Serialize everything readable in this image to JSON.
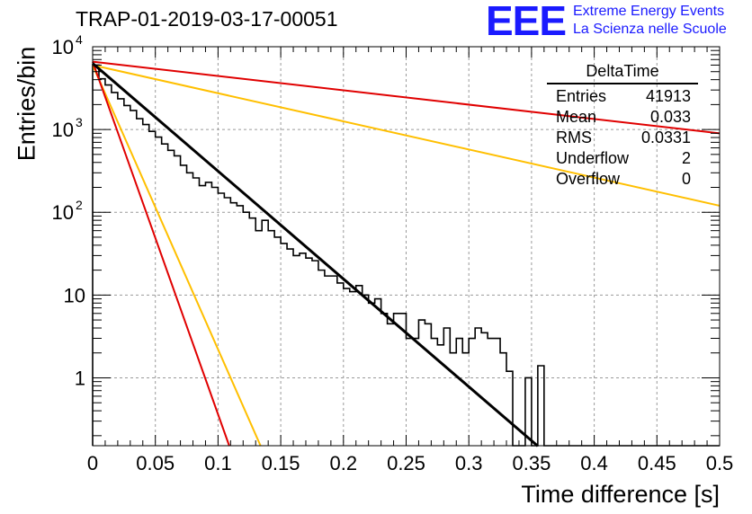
{
  "header": {
    "title": "TRAP-01-2019-03-17-00051",
    "logo": "EEE",
    "logo_line1": "Extreme Energy Events",
    "logo_line2": "La Scienza nelle Scuole"
  },
  "stats_box": {
    "name": "DeltaTime",
    "rows": [
      {
        "label": "Entries",
        "value": "41913"
      },
      {
        "label": "Mean",
        "value": "0.033"
      },
      {
        "label": "RMS",
        "value": "0.0331"
      },
      {
        "label": "Underflow",
        "value": "2"
      },
      {
        "label": "Overflow",
        "value": "0"
      }
    ]
  },
  "chart_data": {
    "type": "histogram",
    "title": "TRAP-01-2019-03-17-00051",
    "xlabel": "Time difference [s]",
    "ylabel": "Entries/bin",
    "xlim": [
      0,
      0.5
    ],
    "ylim_log10": [
      -0.82,
      4
    ],
    "yscale": "log",
    "grid": true,
    "x_ticks": [
      "0",
      "0.05",
      "0.1",
      "0.15",
      "0.2",
      "0.25",
      "0.3",
      "0.35",
      "0.4",
      "0.45",
      "0.5"
    ],
    "y_ticks": [
      {
        "base": "10",
        "exp": "4",
        "value": 10000
      },
      {
        "base": "10",
        "exp": "3",
        "value": 1000
      },
      {
        "base": "10",
        "exp": "2",
        "value": 100
      },
      {
        "base": "10",
        "exp": "",
        "value": 10
      },
      {
        "base": "1",
        "exp": "",
        "value": 1
      }
    ],
    "bin_width": 0.005,
    "histogram": [
      6000,
      4100,
      3450,
      2800,
      2350,
      1950,
      1700,
      1350,
      1150,
      950,
      810,
      670,
      560,
      480,
      370,
      300,
      260,
      210,
      230,
      200,
      170,
      150,
      130,
      120,
      100,
      85,
      60,
      80,
      60,
      50,
      42,
      36,
      30,
      32,
      28,
      26,
      20,
      17,
      17,
      14,
      12,
      11,
      13,
      10,
      8,
      9,
      6,
      4.5,
      6,
      6,
      3,
      3,
      5,
      4.5,
      3,
      2.5,
      4,
      2,
      3,
      2,
      3,
      4,
      3.5,
      3,
      3,
      2,
      1.2,
      0.1,
      0.1,
      1,
      0.1,
      1.4,
      0.1,
      0.1,
      0.1,
      0.1,
      0.1,
      0.1,
      0.1,
      0.1,
      0.1,
      0.1,
      0.1,
      0.1,
      0.1,
      0.1,
      0.1,
      0.1,
      0.1,
      0.1,
      0.1,
      0.1,
      0.1,
      0.1,
      0.1,
      0.1,
      0.1,
      0.1,
      0.1,
      0.1
    ],
    "series": [
      {
        "type": "exponential",
        "color": "#000000",
        "values": [
          {
            "x": 0,
            "y": 6300
          },
          {
            "x": 0.355,
            "y": 0.15
          }
        ]
      },
      {
        "type": "exponential",
        "color": "#ffbf00",
        "values": [
          {
            "x": 0,
            "y": 6000
          },
          {
            "x": 0.5,
            "y": 120
          }
        ]
      },
      {
        "type": "exponential",
        "color": "#e00000",
        "values": [
          {
            "x": 0,
            "y": 6600
          },
          {
            "x": 0.5,
            "y": 900
          }
        ]
      },
      {
        "type": "exponential",
        "color": "#ffbf00",
        "values": [
          {
            "x": 0,
            "y": 6000
          },
          {
            "x": 0.134,
            "y": 0.15
          }
        ]
      },
      {
        "type": "exponential",
        "color": "#e00000",
        "values": [
          {
            "x": 0,
            "y": 6600
          },
          {
            "x": 0.109,
            "y": 0.15
          }
        ]
      }
    ]
  }
}
